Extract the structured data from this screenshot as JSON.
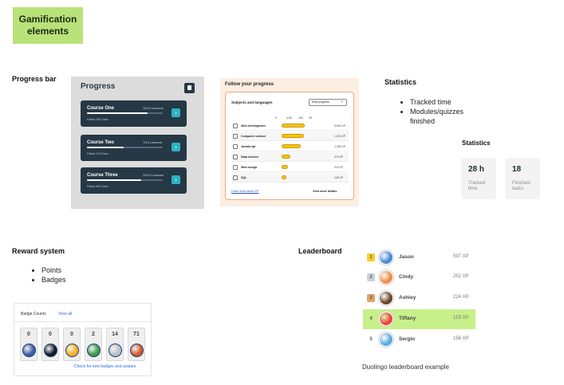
{
  "sticky": {
    "title": "Gamification elements"
  },
  "sections": {
    "progress_bar": "Progress bar",
    "statistics": "Statistics",
    "reward_system": "Reward system",
    "leaderboard": "Leaderboard"
  },
  "statistics_bullets": [
    "Tracked time",
    "Modules/quizzes finished"
  ],
  "reward_bullets": [
    "Points",
    "Badges"
  ],
  "progress_panel": {
    "title": "Progress",
    "courses": [
      {
        "name": "Course One",
        "lessons": "11/14 Lessons",
        "xp": "Fellow 150 Coins",
        "progress": 0.8
      },
      {
        "name": "Course Two",
        "lessons": "7/14 Lessons",
        "xp": "Fellow 175 Coins",
        "progress": 0.48
      },
      {
        "name": "Course Three",
        "lessons": "10/14 Lessons",
        "xp": "Fellow 400 Coins",
        "progress": 0.72
      }
    ]
  },
  "follow_progress": {
    "title": "Follow your progress",
    "subtitle": "Subjects and languages",
    "select_value": "Real progress",
    "scale": [
      "0",
      "4.5h",
      "10h",
      "2K"
    ],
    "rows": [
      {
        "name": "Web development",
        "value": "5,843 XP",
        "fraction": 0.45
      },
      {
        "name": "Computer science",
        "value": "1,876 XP",
        "fraction": 0.43
      },
      {
        "name": "JavaScript",
        "value": "1,256 XP",
        "fraction": 0.37
      },
      {
        "name": "Data science",
        "value": "276 XP",
        "fraction": 0.17
      },
      {
        "name": "Web design",
        "value": "215 XP",
        "fraction": 0.13
      },
      {
        "name": "SQL",
        "value": "128 XP",
        "fraction": 0.09
      }
    ],
    "learn_more": "Learn more about XP",
    "view_more": "View more details"
  },
  "statistics_card": {
    "title": "Statistics",
    "items": [
      {
        "value": "28 h",
        "label": "Tracked time"
      },
      {
        "value": "18",
        "label": "Finished tasks"
      }
    ]
  },
  "badges": {
    "header": "Badge Counts",
    "view_all": "View all",
    "items": [
      {
        "count": "0",
        "color": "#3b5ea8"
      },
      {
        "count": "0",
        "color": "#101a2a"
      },
      {
        "count": "0",
        "color": "#f2b01e"
      },
      {
        "count": "2",
        "color": "#3d9a4c"
      },
      {
        "count": "14",
        "color": "#b9c1c6"
      },
      {
        "count": "71",
        "color": "#d4582d"
      }
    ],
    "footer": "Check for new badges and avatars"
  },
  "leaderboard": {
    "rows": [
      {
        "rank": "1",
        "name": "Jason",
        "xp": "597 XP",
        "rank_color": "#f5cc2a",
        "avatar_color": "#4a8bd8",
        "highlight": false
      },
      {
        "rank": "2",
        "name": "Cindy",
        "xp": "252 XP",
        "rank_color": "#c9d3dd",
        "avatar_color": "#f08a47",
        "highlight": false
      },
      {
        "rank": "3",
        "name": "Ashley",
        "xp": "224 XP",
        "rank_color": "#e0a46a",
        "avatar_color": "#6b4428",
        "highlight": false
      },
      {
        "rank": "4",
        "name": "Tiffany",
        "xp": "153 XP",
        "rank_color": "#c8f08a",
        "avatar_color": "#e9473b",
        "highlight": true
      },
      {
        "rank": "5",
        "name": "Sergio",
        "xp": "156 XP",
        "rank_color": "#ffffff",
        "avatar_color": "#5ea9e0",
        "highlight": false
      }
    ],
    "caption": "Duolingo leaderboard example"
  }
}
